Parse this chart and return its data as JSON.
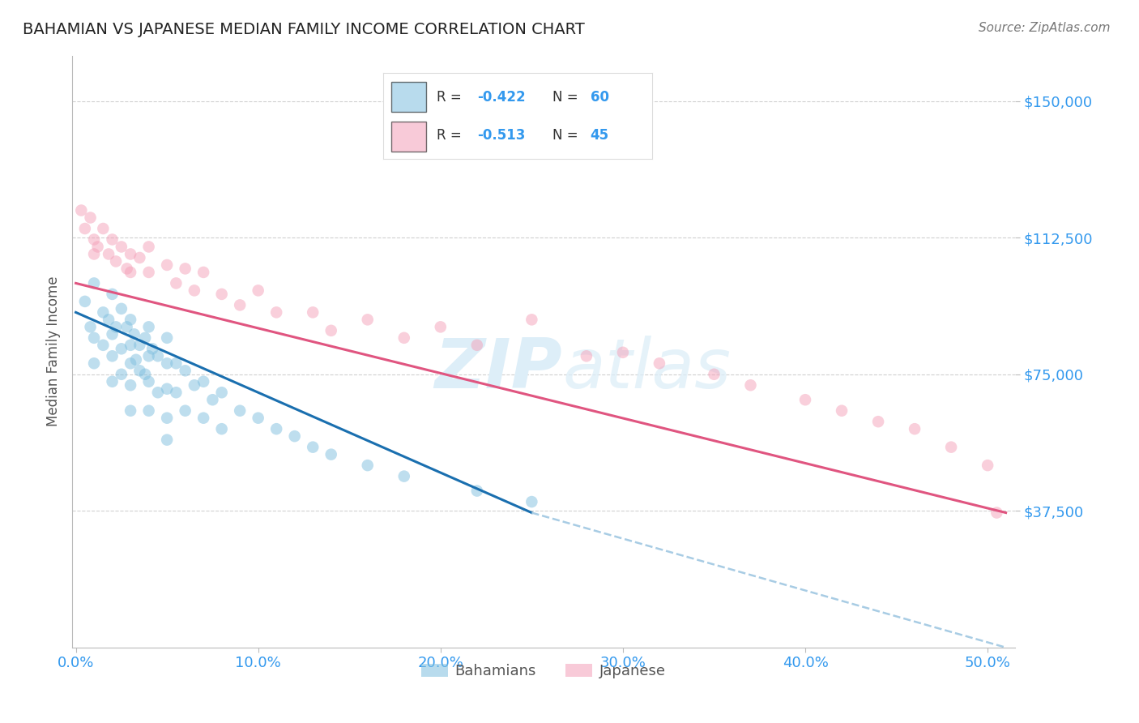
{
  "title": "BAHAMIAN VS JAPANESE MEDIAN FAMILY INCOME CORRELATION CHART",
  "source": "Source: ZipAtlas.com",
  "ylabel": "Median Family Income",
  "xlabel_ticks": [
    "0.0%",
    "10.0%",
    "20.0%",
    "30.0%",
    "40.0%",
    "50.0%"
  ],
  "xlabel_tick_vals": [
    0.0,
    0.1,
    0.2,
    0.3,
    0.4,
    0.5
  ],
  "ytick_labels": [
    "$37,500",
    "$75,000",
    "$112,500",
    "$150,000"
  ],
  "ytick_vals": [
    37500,
    75000,
    112500,
    150000
  ],
  "ylim": [
    0,
    162500
  ],
  "xlim": [
    -0.002,
    0.515
  ],
  "R_bah": -0.422,
  "N_bah": 60,
  "R_jap": -0.513,
  "N_jap": 45,
  "bahamian_color": "#7fbfdf",
  "japanese_color": "#f4a0b8",
  "trendline_bah_color": "#1a6faf",
  "trendline_jap_color": "#e05580",
  "trendline_dashed_color": "#a8cce4",
  "watermark_color": "#ddeef8",
  "background_color": "#ffffff",
  "grid_color": "#d0d0d0",
  "bah_x": [
    0.005,
    0.008,
    0.01,
    0.01,
    0.01,
    0.015,
    0.015,
    0.018,
    0.02,
    0.02,
    0.02,
    0.02,
    0.022,
    0.025,
    0.025,
    0.025,
    0.028,
    0.03,
    0.03,
    0.03,
    0.03,
    0.03,
    0.032,
    0.033,
    0.035,
    0.035,
    0.038,
    0.038,
    0.04,
    0.04,
    0.04,
    0.04,
    0.042,
    0.045,
    0.045,
    0.05,
    0.05,
    0.05,
    0.05,
    0.05,
    0.055,
    0.055,
    0.06,
    0.06,
    0.065,
    0.07,
    0.07,
    0.075,
    0.08,
    0.08,
    0.09,
    0.1,
    0.11,
    0.12,
    0.13,
    0.14,
    0.16,
    0.18,
    0.22,
    0.25
  ],
  "bah_y": [
    95000,
    88000,
    100000,
    85000,
    78000,
    92000,
    83000,
    90000,
    97000,
    86000,
    80000,
    73000,
    88000,
    93000,
    82000,
    75000,
    88000,
    90000,
    83000,
    78000,
    72000,
    65000,
    86000,
    79000,
    83000,
    76000,
    85000,
    75000,
    88000,
    80000,
    73000,
    65000,
    82000,
    80000,
    70000,
    85000,
    78000,
    71000,
    63000,
    57000,
    78000,
    70000,
    76000,
    65000,
    72000,
    73000,
    63000,
    68000,
    70000,
    60000,
    65000,
    63000,
    60000,
    58000,
    55000,
    53000,
    50000,
    47000,
    43000,
    40000
  ],
  "jap_x": [
    0.003,
    0.005,
    0.008,
    0.01,
    0.01,
    0.012,
    0.015,
    0.018,
    0.02,
    0.022,
    0.025,
    0.028,
    0.03,
    0.03,
    0.035,
    0.04,
    0.04,
    0.05,
    0.055,
    0.06,
    0.065,
    0.07,
    0.08,
    0.09,
    0.1,
    0.11,
    0.13,
    0.14,
    0.16,
    0.18,
    0.2,
    0.22,
    0.25,
    0.28,
    0.3,
    0.32,
    0.35,
    0.37,
    0.4,
    0.42,
    0.44,
    0.46,
    0.48,
    0.5,
    0.505
  ],
  "jap_y": [
    120000,
    115000,
    118000,
    112000,
    108000,
    110000,
    115000,
    108000,
    112000,
    106000,
    110000,
    104000,
    108000,
    103000,
    107000,
    110000,
    103000,
    105000,
    100000,
    104000,
    98000,
    103000,
    97000,
    94000,
    98000,
    92000,
    92000,
    87000,
    90000,
    85000,
    88000,
    83000,
    90000,
    80000,
    81000,
    78000,
    75000,
    72000,
    68000,
    65000,
    62000,
    60000,
    55000,
    50000,
    37000
  ],
  "bah_trendline_x0": 0.0,
  "bah_trendline_y0": 92000,
  "bah_trendline_x1": 0.25,
  "bah_trendline_y1": 37000,
  "bah_trendline_dash_x1": 0.51,
  "bah_trendline_dash_y1": 0,
  "jap_trendline_x0": 0.0,
  "jap_trendline_y0": 100000,
  "jap_trendline_x1": 0.51,
  "jap_trendline_y1": 37000
}
